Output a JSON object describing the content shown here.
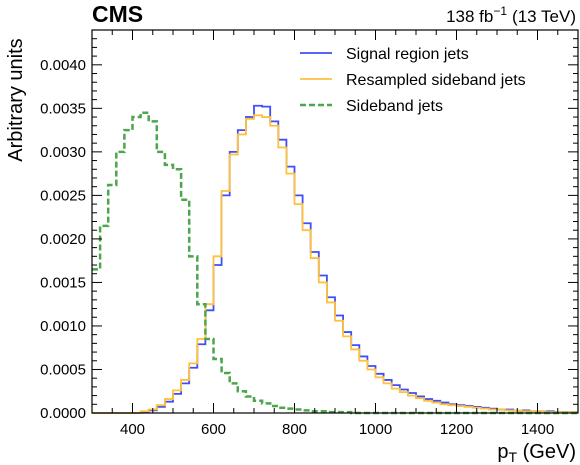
{
  "header": {
    "experiment": "CMS",
    "lumi": "138 fb",
    "lumi_exp": "−1",
    "energy": "(13 TeV)"
  },
  "chart_data": {
    "type": "line",
    "style": "step",
    "xlabel_main": "p",
    "xlabel_sub": "T",
    "xlabel_unit": " (GeV)",
    "ylabel": "Arbitrary units",
    "xlim": [
      300,
      1500
    ],
    "ylim": [
      0,
      0.0044
    ],
    "xticks": [
      400,
      600,
      800,
      1000,
      1200,
      1400
    ],
    "xtick_labels": [
      "400",
      "600",
      "800",
      "1000",
      "1200",
      "1400"
    ],
    "yticks": [
      0,
      0.0005,
      0.001,
      0.0015,
      0.002,
      0.0025,
      0.003,
      0.0035,
      0.004
    ],
    "ytick_labels": [
      "0.0000",
      "0.0005",
      "0.0010",
      "0.0015",
      "0.0020",
      "0.0025",
      "0.0030",
      "0.0035",
      "0.0040"
    ],
    "legend_position": "top-right",
    "bin_edges": [
      300,
      320,
      340,
      360,
      380,
      400,
      420,
      440,
      460,
      480,
      500,
      520,
      540,
      560,
      580,
      600,
      620,
      640,
      660,
      680,
      700,
      720,
      740,
      760,
      780,
      800,
      820,
      840,
      860,
      880,
      900,
      920,
      940,
      960,
      980,
      1000,
      1020,
      1040,
      1060,
      1080,
      1100,
      1120,
      1140,
      1160,
      1180,
      1200,
      1220,
      1240,
      1260,
      1280,
      1300,
      1320,
      1340,
      1360,
      1380,
      1400,
      1420,
      1440,
      1460,
      1480,
      1500
    ],
    "series": [
      {
        "name": "Signal region jets",
        "color": "#3f4ff5",
        "dash": "solid",
        "values": [
          0,
          0,
          0,
          0,
          0,
          0,
          1e-05,
          3e-05,
          7e-05,
          0.00013,
          0.00022,
          0.00034,
          0.00052,
          0.00079,
          0.00118,
          0.0017,
          0.0025,
          0.003,
          0.00325,
          0.0034,
          0.00353,
          0.00352,
          0.00335,
          0.00314,
          0.00283,
          0.0025,
          0.00218,
          0.00185,
          0.00158,
          0.00133,
          0.00112,
          0.00093,
          0.00078,
          0.00065,
          0.00054,
          0.00045,
          0.00038,
          0.00032,
          0.00027,
          0.00023,
          0.00019,
          0.00016,
          0.00014,
          0.00012,
          0.0001,
          9e-05,
          8e-05,
          7e-05,
          6e-05,
          5e-05,
          4e-05,
          4e-05,
          3e-05,
          3e-05,
          2e-05,
          2e-05,
          2e-05,
          1e-05,
          1e-05,
          1e-05
        ]
      },
      {
        "name": "Resampled sideband jets",
        "color": "#ffc13b",
        "dash": "solid",
        "values": [
          0,
          0,
          0,
          0,
          0,
          0,
          2e-05,
          4e-05,
          9e-05,
          0.00016,
          0.00026,
          0.00038,
          0.00057,
          0.00085,
          0.00125,
          0.0018,
          0.00255,
          0.00297,
          0.0032,
          0.00338,
          0.00342,
          0.0034,
          0.0033,
          0.00305,
          0.00275,
          0.0024,
          0.0021,
          0.00178,
          0.0015,
          0.00127,
          0.00106,
          0.00088,
          0.00073,
          0.0006,
          0.0005,
          0.00041,
          0.00034,
          0.00028,
          0.00024,
          0.0002,
          0.00017,
          0.00014,
          0.00012,
          0.0001,
          9e-05,
          8e-05,
          7e-05,
          6e-05,
          5e-05,
          4e-05,
          4e-05,
          3e-05,
          3e-05,
          2e-05,
          2e-05,
          2e-05,
          1e-05,
          1e-05,
          1e-05,
          1e-05
        ]
      },
      {
        "name": "Sideband jets",
        "color": "#4ca64c",
        "dash": "dashed",
        "values": [
          0.00165,
          0.00215,
          0.00262,
          0.003,
          0.00325,
          0.0034,
          0.00345,
          0.00335,
          0.003,
          0.00285,
          0.0028,
          0.00245,
          0.0018,
          0.00125,
          0.00085,
          0.00062,
          0.00046,
          0.00034,
          0.00025,
          0.00019,
          0.00014,
          0.00011,
          8e-05,
          6e-05,
          5e-05,
          4e-05,
          3e-05,
          2e-05,
          2e-05,
          1e-05,
          1e-05,
          1e-05,
          0,
          0,
          0,
          0,
          0,
          0,
          0,
          0,
          0,
          0,
          0,
          0,
          0,
          0,
          0,
          0,
          0,
          0,
          0,
          0,
          0,
          0,
          0,
          0,
          0,
          0,
          0,
          0
        ]
      }
    ]
  }
}
